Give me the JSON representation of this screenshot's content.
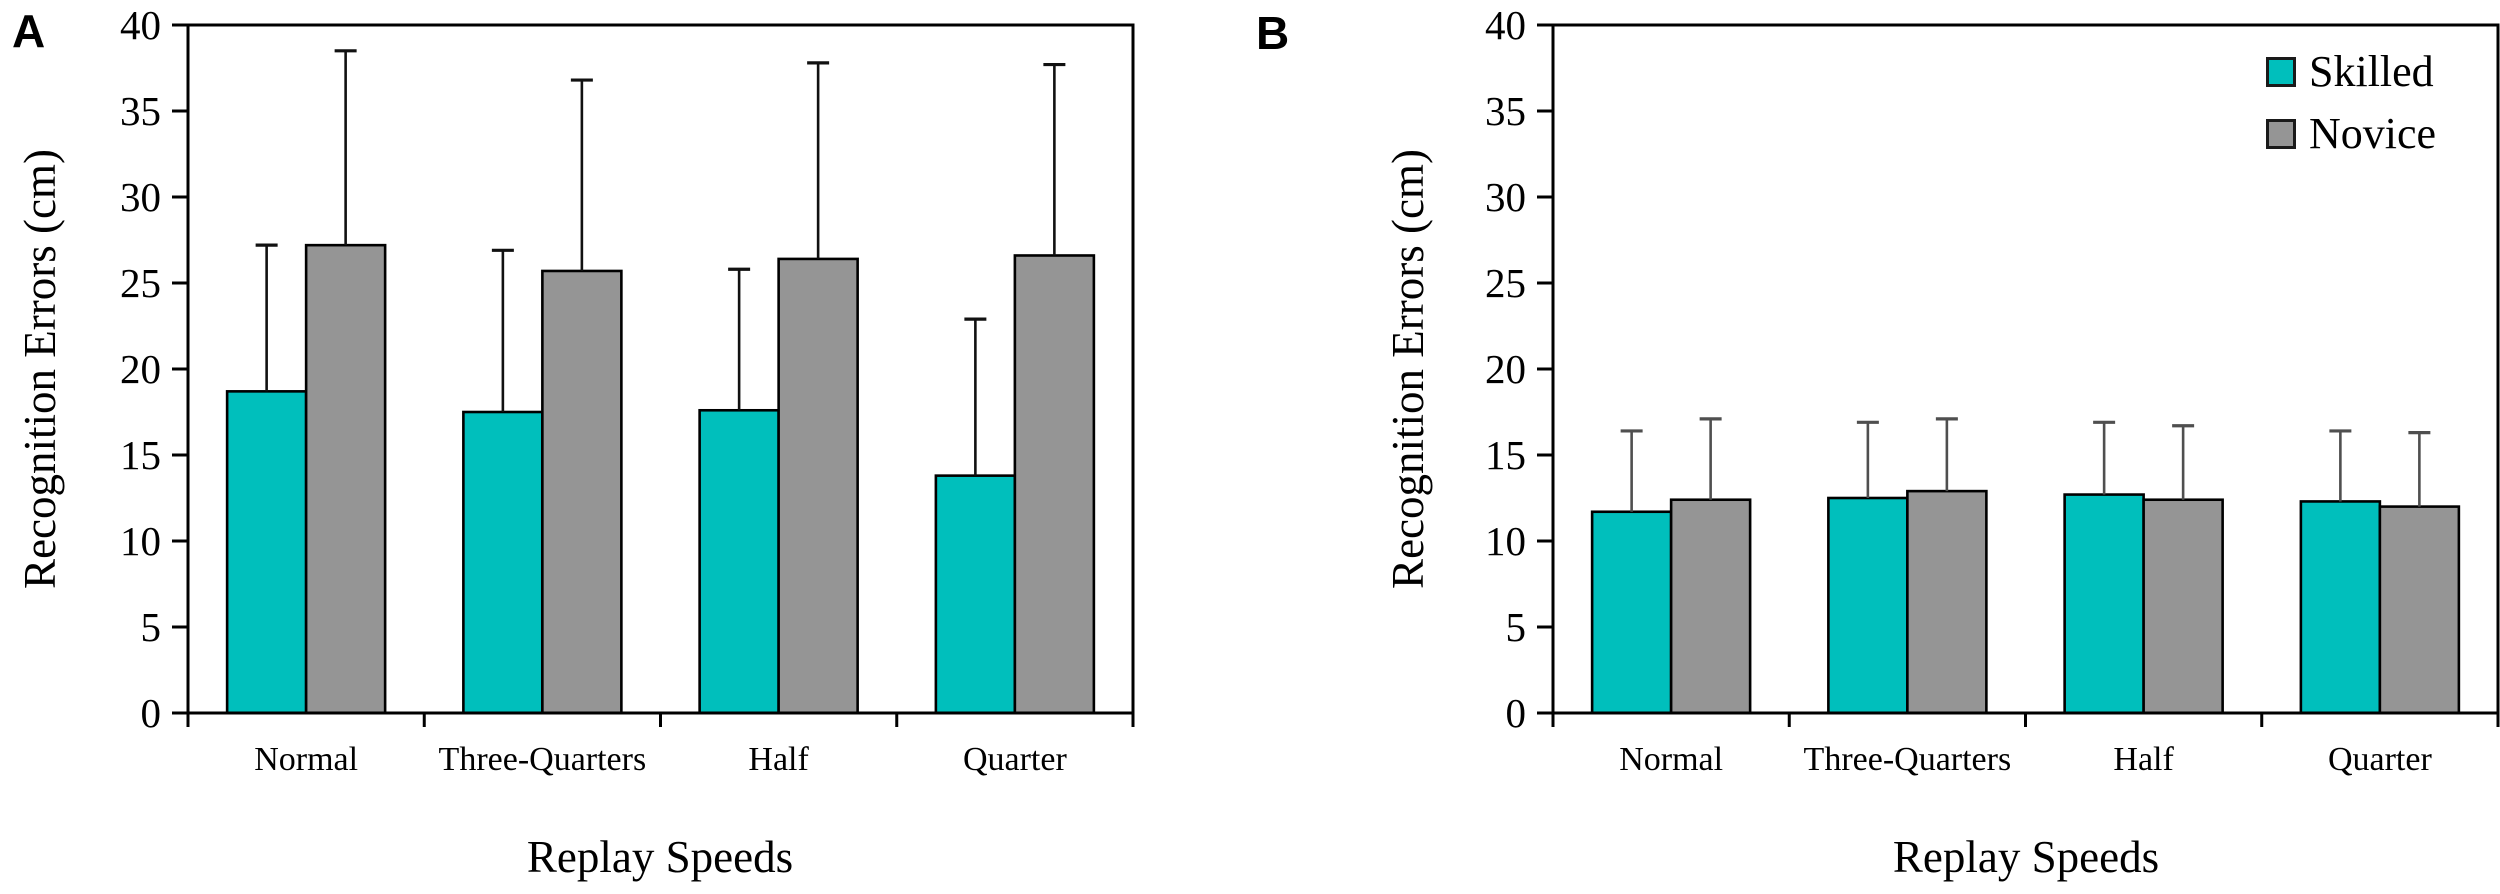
{
  "figure": {
    "panel_a_letter": "A",
    "panel_b_letter": "B"
  },
  "axes": {
    "y_label": "Recognition Errors (cm)",
    "x_label": "Replay Speeds",
    "y_ticks": [
      0,
      5,
      10,
      15,
      20,
      25,
      30,
      35,
      40
    ],
    "ylim": [
      0,
      40
    ]
  },
  "legend": {
    "skilled": "Skilled",
    "novice": "Novice",
    "position": "top-right-panel-B"
  },
  "colors": {
    "skilled": "#00bfbc",
    "novice": "#959595",
    "bar_outline": "#000000",
    "axis": "#000000",
    "error_bar_a": "#111111",
    "error_bar_b": "#4f4f4f"
  },
  "chart_data": [
    {
      "type": "bar",
      "panel": "A",
      "xlabel": "Replay Speeds",
      "ylabel": "Recognition Errors (cm)",
      "ylim": [
        0,
        40
      ],
      "grid": false,
      "categories": [
        "Normal",
        "Three-Quarters",
        "Half",
        "Quarter"
      ],
      "series": [
        {
          "name": "Skilled",
          "values": [
            18.7,
            17.5,
            17.6,
            13.8
          ],
          "error_plus": [
            8.5,
            9.4,
            8.2,
            9.1
          ]
        },
        {
          "name": "Novice",
          "values": [
            27.2,
            25.7,
            26.4,
            26.6
          ],
          "error_plus": [
            11.3,
            11.1,
            11.4,
            11.1
          ]
        }
      ]
    },
    {
      "type": "bar",
      "panel": "B",
      "xlabel": "Replay Speeds",
      "ylabel": "Recognition Errors (cm)",
      "ylim": [
        0,
        40
      ],
      "grid": false,
      "legend_position": "top-right",
      "categories": [
        "Normal",
        "Three-Quarters",
        "Half",
        "Quarter"
      ],
      "series": [
        {
          "name": "Skilled",
          "values": [
            11.7,
            12.5,
            12.7,
            12.3
          ],
          "error_plus": [
            4.7,
            4.4,
            4.2,
            4.1
          ]
        },
        {
          "name": "Novice",
          "values": [
            12.4,
            12.9,
            12.4,
            12.0
          ],
          "error_plus": [
            4.7,
            4.2,
            4.3,
            4.3
          ]
        }
      ]
    }
  ]
}
